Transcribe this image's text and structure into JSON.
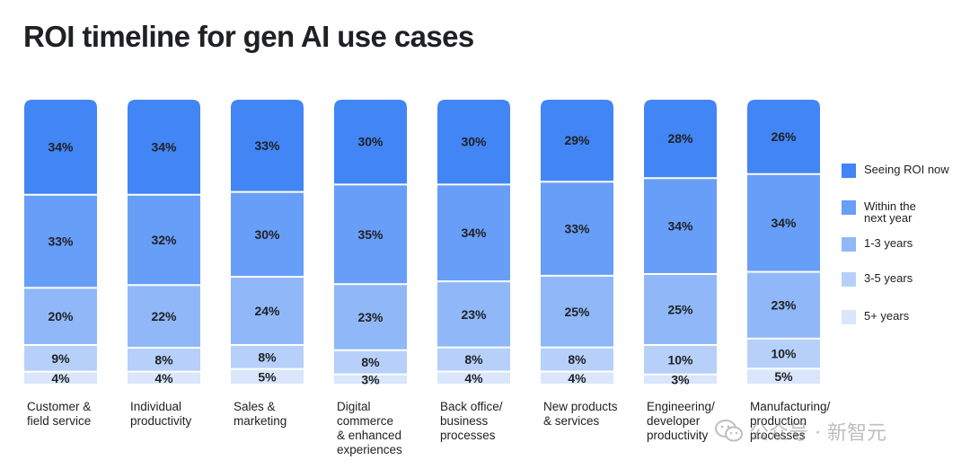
{
  "title": "ROI timeline for gen AI use cases",
  "colors": {
    "seeing_roi_now": "#4285F4",
    "within_next_year": "#679EF7",
    "one_three_years": "#90B8F8",
    "three_five_years": "#B6D0FA",
    "five_plus_years": "#D9E6FC"
  },
  "chart_data": {
    "type": "bar",
    "stacked": true,
    "percent": true,
    "title": "ROI timeline for gen AI use cases",
    "categories": [
      "Customer & field service",
      "Individual productivity",
      "Sales & marketing",
      "Digital commerce & enhanced experiences",
      "Back office/ business processes",
      "New products & services",
      "Engineering/ developer productivity",
      "Manufacturing/ production processes"
    ],
    "category_lines": [
      [
        "Customer &",
        "field service"
      ],
      [
        "Individual",
        "productivity"
      ],
      [
        "Sales &",
        "marketing"
      ],
      [
        "Digital",
        "commerce",
        "& enhanced",
        "experiences"
      ],
      [
        "Back office/",
        "business",
        "processes"
      ],
      [
        "New products",
        "& services"
      ],
      [
        "Engineering/",
        "developer",
        "productivity"
      ],
      [
        "Manufacturing/",
        "production",
        "processes"
      ]
    ],
    "series": [
      {
        "name": "Seeing ROI now",
        "color": "#4285F4",
        "values": [
          34,
          34,
          33,
          30,
          30,
          29,
          28,
          26
        ]
      },
      {
        "name": "Within the next year",
        "color": "#679EF7",
        "values": [
          33,
          32,
          30,
          35,
          34,
          33,
          34,
          34
        ]
      },
      {
        "name": "1-3 years",
        "color": "#90B8F8",
        "values": [
          20,
          22,
          24,
          23,
          23,
          25,
          25,
          23
        ]
      },
      {
        "name": "3-5 years",
        "color": "#B6D0FA",
        "values": [
          9,
          8,
          8,
          8,
          8,
          8,
          10,
          10
        ]
      },
      {
        "name": "5+ years",
        "color": "#D9E6FC",
        "values": [
          4,
          4,
          5,
          3,
          4,
          4,
          3,
          5
        ]
      }
    ],
    "value_suffix": "%",
    "legend_position": "right"
  },
  "legend": [
    {
      "lines": [
        "Seeing ROI now"
      ],
      "color": "#4285F4"
    },
    {
      "lines": [
        "Within the",
        "next year"
      ],
      "color": "#679EF7"
    },
    {
      "lines": [
        "1-3 years"
      ],
      "color": "#90B8F8"
    },
    {
      "lines": [
        "3-5 years"
      ],
      "color": "#B6D0FA"
    },
    {
      "lines": [
        "5+ years"
      ],
      "color": "#D9E6FC"
    }
  ],
  "watermark": "公众号 · 新智元"
}
